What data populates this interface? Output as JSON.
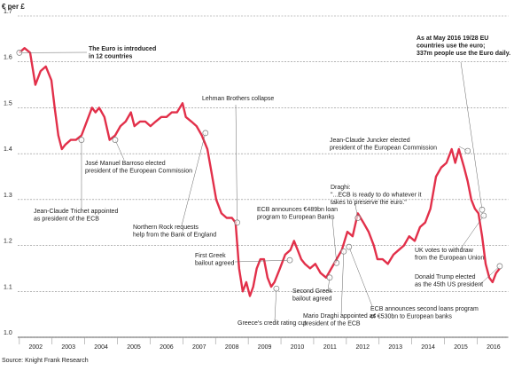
{
  "chart_data": {
    "type": "line",
    "y_label": "€ per £",
    "source": "Source: Knight Frank Research",
    "color": "#e2304a",
    "grid": true,
    "xlim": [
      2001.95,
      2016.95
    ],
    "xticks": [
      2002,
      2003,
      2004,
      2005,
      2006,
      2007,
      2008,
      2009,
      2010,
      2011,
      2012,
      2013,
      2014,
      2015,
      2016
    ],
    "ylim": [
      1.0,
      1.7
    ],
    "yticks": [
      {
        "value": 1,
        "label": "1.0"
      },
      1.1,
      1.2,
      1.3,
      1.4,
      1.5,
      1.6,
      1.7
    ],
    "x": [
      2002.0,
      2002.16,
      2002.33,
      2002.49,
      2002.65,
      2002.81,
      2002.98,
      2003.08,
      2003.19,
      2003.3,
      2003.41,
      2003.57,
      2003.73,
      2003.9,
      2004.06,
      2004.22,
      2004.33,
      2004.44,
      2004.6,
      2004.76,
      2004.93,
      2005.09,
      2005.25,
      2005.41,
      2005.52,
      2005.69,
      2005.85,
      2006.01,
      2006.17,
      2006.34,
      2006.5,
      2006.66,
      2006.82,
      2006.99,
      2007.09,
      2007.26,
      2007.42,
      2007.58,
      2007.75,
      2007.85,
      2008.02,
      2008.18,
      2008.34,
      2008.5,
      2008.61,
      2008.72,
      2008.83,
      2008.94,
      2009.05,
      2009.15,
      2009.26,
      2009.37,
      2009.48,
      2009.59,
      2009.7,
      2009.8,
      2009.97,
      2010.13,
      2010.29,
      2010.4,
      2010.51,
      2010.62,
      2010.73,
      2010.89,
      2011.05,
      2011.21,
      2011.38,
      2011.54,
      2011.7,
      2011.86,
      2012.03,
      2012.19,
      2012.35,
      2012.52,
      2012.68,
      2012.84,
      2012.95,
      2013.11,
      2013.27,
      2013.44,
      2013.6,
      2013.76,
      2013.92,
      2014.09,
      2014.25,
      2014.41,
      2014.57,
      2014.74,
      2014.9,
      2015.06,
      2015.22,
      2015.33,
      2015.44,
      2015.6,
      2015.71,
      2015.82,
      2015.93,
      2016.04,
      2016.15,
      2016.26,
      2016.37,
      2016.47,
      2016.58,
      2016.69
    ],
    "values": [
      1.62,
      1.63,
      1.62,
      1.55,
      1.58,
      1.59,
      1.56,
      1.5,
      1.44,
      1.41,
      1.42,
      1.43,
      1.43,
      1.44,
      1.47,
      1.5,
      1.49,
      1.5,
      1.48,
      1.43,
      1.44,
      1.46,
      1.47,
      1.49,
      1.46,
      1.47,
      1.47,
      1.46,
      1.47,
      1.48,
      1.48,
      1.49,
      1.49,
      1.51,
      1.48,
      1.47,
      1.46,
      1.44,
      1.41,
      1.37,
      1.3,
      1.27,
      1.26,
      1.26,
      1.25,
      1.15,
      1.1,
      1.12,
      1.09,
      1.11,
      1.15,
      1.17,
      1.17,
      1.13,
      1.11,
      1.12,
      1.15,
      1.18,
      1.19,
      1.21,
      1.19,
      1.17,
      1.16,
      1.15,
      1.16,
      1.14,
      1.13,
      1.15,
      1.17,
      1.19,
      1.23,
      1.22,
      1.27,
      1.25,
      1.23,
      1.2,
      1.17,
      1.17,
      1.16,
      1.18,
      1.19,
      1.2,
      1.22,
      1.21,
      1.24,
      1.25,
      1.28,
      1.35,
      1.37,
      1.38,
      1.41,
      1.38,
      1.41,
      1.37,
      1.34,
      1.3,
      1.28,
      1.27,
      1.22,
      1.16,
      1.13,
      1.12,
      1.14,
      1.15
    ],
    "annotations": [
      {
        "lines": [
          "The Euro is introduced",
          "in 12 countries"
        ],
        "x": 2002.0,
        "y": 1.62
      },
      {
        "lines": [
          "José Manuel Barroso elected",
          "president of the European Commission"
        ],
        "x": 2004.93,
        "y": 1.43
      },
      {
        "lines": [
          "Jean-Claude Trichet appointed",
          "as president of the ECB"
        ],
        "x": 2003.9,
        "y": 1.43
      },
      {
        "lines": [
          "Lehman Brothers collapse"
        ],
        "x": 2008.66,
        "y": 1.25
      },
      {
        "lines": [
          "Northern Rock requests",
          "help from the Bank of England"
        ],
        "x": 2007.69,
        "y": 1.445
      },
      {
        "lines": [
          "First Greek",
          "bailout agreed"
        ],
        "x": 2010.27,
        "y": 1.168
      },
      {
        "lines": [
          "Greece's credit rating cut"
        ],
        "x": 2009.86,
        "y": 1.106
      },
      {
        "lines": [
          "Second Greek",
          "bailout agreed"
        ],
        "x": 2011.49,
        "y": 1.13
      },
      {
        "lines": [
          "ECB announces €489bn loan",
          "program to European Banks"
        ],
        "x": 2011.7,
        "y": 1.162
      },
      {
        "lines": [
          "Mario Draghi appointed as",
          "president of the ECB"
        ],
        "x": 2011.92,
        "y": 1.187
      },
      {
        "lines": [
          "Draghi:",
          "\"...ECB is ready to do whatever it",
          "takes to preserve the euro.\""
        ],
        "x": 2012.35,
        "y": 1.26
      },
      {
        "lines": [
          "ECB announces second loans program",
          "of €530bn to European banks"
        ],
        "x": 2012.08,
        "y": 1.197
      },
      {
        "lines": [
          "Jean-Claude Juncker elected",
          "president of the European Commission"
        ],
        "x": 2015.71,
        "y": 1.406
      },
      {
        "lines": [
          "As at May 2016 19/28 EU",
          "countries use the euro;",
          "337m people use the Euro daily."
        ],
        "x": 2016.15,
        "y": 1.278
      },
      {
        "lines": [
          "UK votes to withdraw",
          "from the European Union"
        ],
        "x": 2016.2,
        "y": 1.265
      },
      {
        "lines": [
          "Donald Trump elected",
          "as the 45th US president"
        ],
        "x": 2016.69,
        "y": 1.155
      }
    ]
  }
}
